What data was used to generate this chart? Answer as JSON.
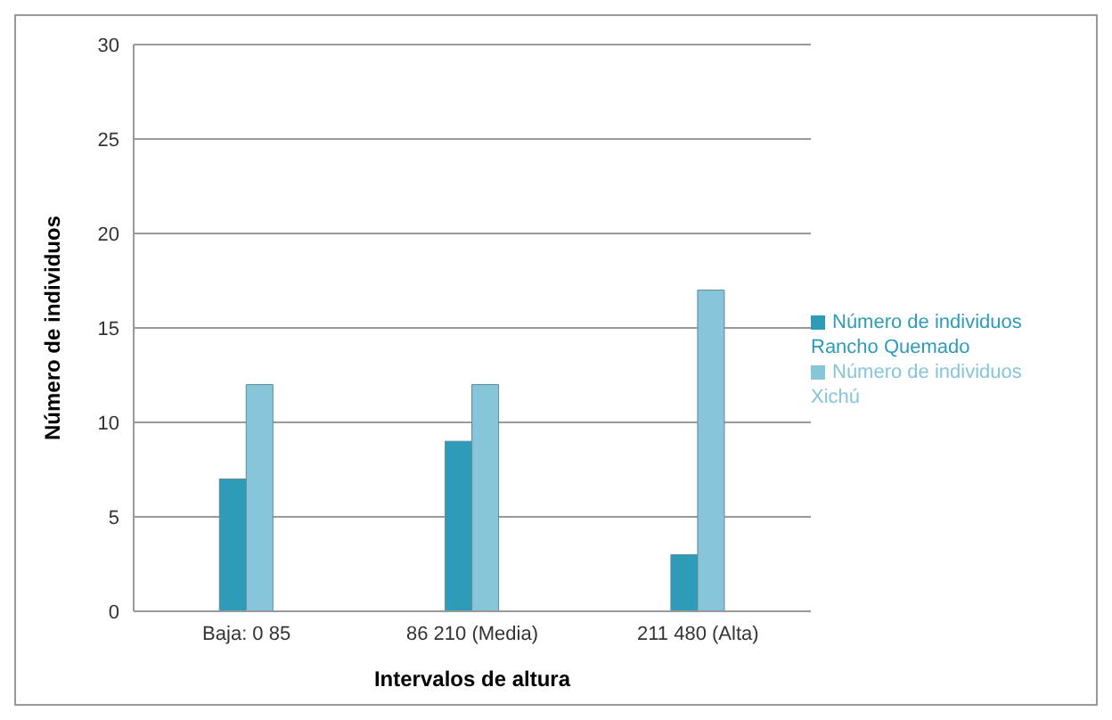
{
  "chart_data": {
    "type": "bar",
    "xlabel": "Intervalos de altura",
    "ylabel": "Número de individuos",
    "categories": [
      "Baja: 0 85",
      "86 210 (Media)",
      "211 480 (Alta)"
    ],
    "series": [
      {
        "name": "Número de individuos Rancho Quemado",
        "color": "#2e9bb8",
        "values": [
          7,
          9,
          3
        ]
      },
      {
        "name": "Número de individuos Xichú",
        "color": "#86c5da",
        "values": [
          12,
          12,
          17
        ]
      }
    ],
    "ylim": [
      0,
      30
    ],
    "yticks": [
      0,
      5,
      10,
      15,
      20,
      25,
      30
    ],
    "grid": "y",
    "legend": "right"
  }
}
